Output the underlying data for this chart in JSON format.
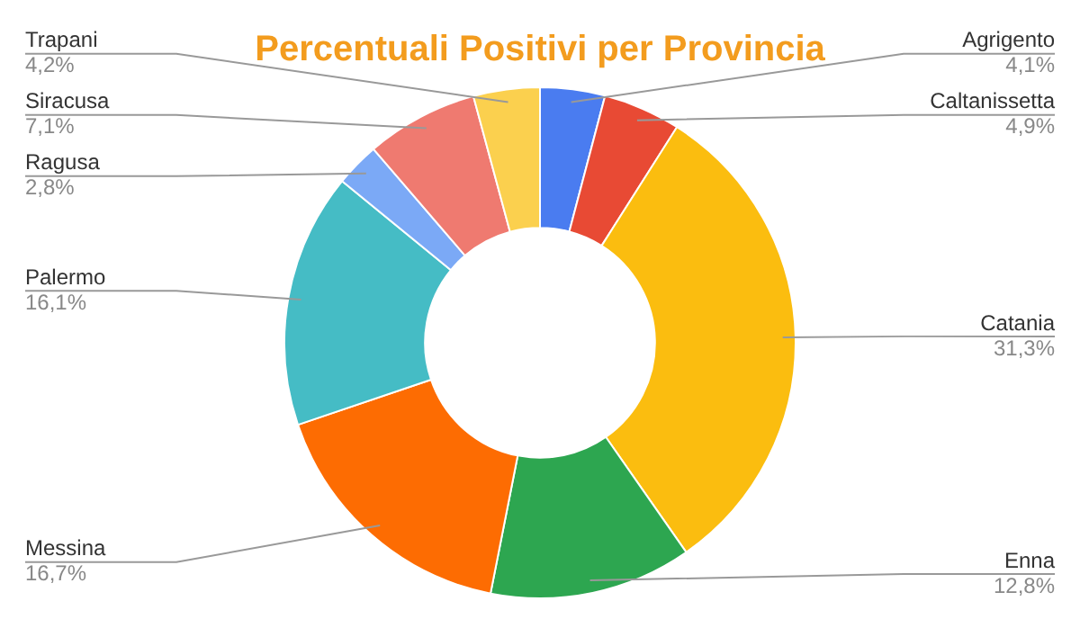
{
  "chart_data": {
    "type": "donut",
    "title": "Percentuali Positivi per Provincia",
    "categories": [
      "Agrigento",
      "Caltanissetta",
      "Catania",
      "Enna",
      "Messina",
      "Palermo",
      "Ragusa",
      "Siracusa",
      "Trapani"
    ],
    "values": [
      4.1,
      4.9,
      31.3,
      12.8,
      16.7,
      16.1,
      2.8,
      7.1,
      4.2
    ],
    "value_labels": [
      "4,1%",
      "4,9%",
      "31,3%",
      "12,8%",
      "16,7%",
      "16,1%",
      "2,8%",
      "7,1%",
      "4,2%"
    ],
    "colors": [
      "#4a7cf0",
      "#e84a34",
      "#fbbd0f",
      "#2da650",
      "#fd6c02",
      "#45bcc5",
      "#7ba9f6",
      "#ef7a70",
      "#fbd04e"
    ],
    "legend": false
  }
}
